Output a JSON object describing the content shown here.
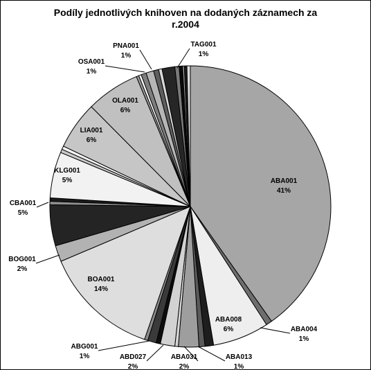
{
  "chart_data": {
    "type": "pie",
    "title_line1": "Podíly jednotlivých knihoven na dodaných záznamech za",
    "title_line2": "r.2004",
    "slices": [
      {
        "label": "ABA001",
        "value_text": "41%",
        "value": 41.0,
        "color": "#a6a6a6"
      },
      {
        "label": "ABA004",
        "value_text": "1%",
        "value": 0.7,
        "color": "#6e6e6e"
      },
      {
        "label": "ABA008",
        "value_text": "6%",
        "value": 6.6,
        "color": "#eeeeee"
      },
      {
        "label": "ABA013",
        "value_text": "1%",
        "value": 1.0,
        "color": "#1e1e1e"
      },
      {
        "label": "",
        "value": 0.7,
        "color": "#5a5a5a"
      },
      {
        "label": "ABA031",
        "value_text": "2%",
        "value": 2.4,
        "color": "#9e9e9e"
      },
      {
        "label": "",
        "value": 0.4,
        "color": "#d6d6d6"
      },
      {
        "label": "ABD027",
        "value_text": "2%",
        "value": 1.7,
        "color": "#d2d2d2"
      },
      {
        "label": "",
        "value": 0.5,
        "color": "#0e0e0e"
      },
      {
        "label": "ABG001",
        "value_text": "1%",
        "value": 1.0,
        "color": "#3a3a3a"
      },
      {
        "label": "",
        "value": 0.4,
        "color": "#8a8a8a"
      },
      {
        "label": "BOA001",
        "value_text": "14%",
        "value": 13.6,
        "color": "#dedede"
      },
      {
        "label": "BOG001",
        "value_text": "2%",
        "value": 1.9,
        "color": "#b2b2b2"
      },
      {
        "label": "CBA001",
        "value_text": "5%",
        "value": 4.8,
        "color": "#242424"
      },
      {
        "label": "",
        "value": 0.4,
        "color": "#8e8e8e"
      },
      {
        "label": "",
        "value": 0.4,
        "color": "#1a1a1a"
      },
      {
        "label": "KLG001",
        "value_text": "5%",
        "value": 5.4,
        "color": "#f2f2f2"
      },
      {
        "label": "",
        "value": 0.4,
        "color": "#c8c8c8"
      },
      {
        "label": "",
        "value": 0.4,
        "color": "#f4f4f4"
      },
      {
        "label": "LIA001",
        "value_text": "6%",
        "value": 5.6,
        "color": "#c6c6c6"
      },
      {
        "label": "OLA001",
        "value_text": "6%",
        "value": 6.3,
        "color": "#c0c0c0"
      },
      {
        "label": "",
        "value": 0.3,
        "color": "#9a9a9a"
      },
      {
        "label": "",
        "value": 0.3,
        "color": "#fafafa"
      },
      {
        "label": "OSA001",
        "value_text": "1%",
        "value": 0.6,
        "color": "#7e7e7e"
      },
      {
        "label": "PNA001",
        "value_text": "1%",
        "value": 0.9,
        "color": "#b6b6b6"
      },
      {
        "label": "",
        "value": 0.6,
        "color": "#5e5e5e"
      },
      {
        "label": "",
        "value": 0.4,
        "color": "#d8d8d8"
      },
      {
        "label": "",
        "value": 1.5,
        "color": "#262626"
      },
      {
        "label": "TAG001",
        "value_text": "1%",
        "value": 0.5,
        "color": "#7a7a7a"
      },
      {
        "label": "",
        "value": 0.4,
        "color": "#0a0a0a"
      },
      {
        "label": "",
        "value": 0.2,
        "color": "#aaaaaa"
      },
      {
        "label": "",
        "value": 0.3,
        "color": "#1c1c1c"
      },
      {
        "label": "",
        "value": 0.4,
        "color": "#dcdcdc"
      }
    ]
  }
}
